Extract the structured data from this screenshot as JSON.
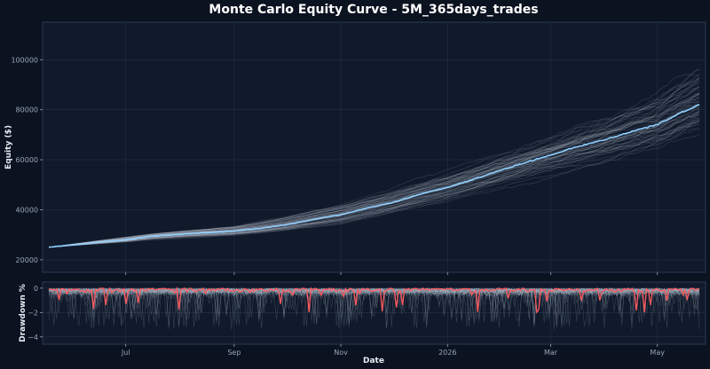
{
  "chart_data": [
    {
      "type": "line",
      "title": "Monte Carlo Equity Curve - 5M_365days_trades",
      "ylabel": "Equity ($)",
      "ylim": [
        15000,
        115000
      ],
      "yticks": [
        20000,
        40000,
        60000,
        80000,
        100000
      ],
      "ytick_labels": [
        "20000",
        "40000",
        "60000",
        "80000",
        "100000"
      ],
      "grid": true,
      "x_start": "2025-05-18",
      "x_end": "2026-05-25",
      "series": [
        {
          "role": "median",
          "x": [
            "2025-05-18",
            "2025-06-01",
            "2025-06-15",
            "2025-07-01",
            "2025-07-15",
            "2025-08-01",
            "2025-08-15",
            "2025-09-01",
            "2025-09-15",
            "2025-10-01",
            "2025-10-15",
            "2025-11-01",
            "2025-11-15",
            "2025-12-01",
            "2025-12-15",
            "2026-01-01",
            "2026-01-15",
            "2026-02-01",
            "2026-02-15",
            "2026-03-01",
            "2026-03-15",
            "2026-04-01",
            "2026-04-15",
            "2026-05-01",
            "2026-05-15",
            "2026-05-25"
          ],
          "y": [
            25000,
            26000,
            27000,
            28000,
            29300,
            30200,
            30800,
            31500,
            32500,
            34000,
            36000,
            38000,
            40500,
            43000,
            46000,
            49000,
            52000,
            56000,
            59000,
            62000,
            65000,
            68000,
            71000,
            74000,
            79000,
            82000
          ]
        },
        {
          "role": "upper-envelope",
          "x": [
            "2025-05-18",
            "2025-07-01",
            "2025-09-01",
            "2025-11-01",
            "2026-01-01",
            "2026-03-01",
            "2026-05-01",
            "2026-05-25"
          ],
          "y": [
            25000,
            30000,
            35000,
            45000,
            58000,
            72000,
            93000,
            106000
          ]
        },
        {
          "role": "lower-envelope",
          "x": [
            "2025-05-18",
            "2025-07-01",
            "2025-09-01",
            "2025-11-01",
            "2026-01-01",
            "2026-03-01",
            "2026-05-01",
            "2026-05-25"
          ],
          "y": [
            25000,
            26500,
            28500,
            32000,
            40000,
            49000,
            58000,
            63000
          ]
        }
      ]
    },
    {
      "type": "line",
      "ylabel": "Drawdown %",
      "xlabel": "Date",
      "ylim": [
        -4.6,
        0.5
      ],
      "yticks": [
        0,
        -2,
        -4
      ],
      "ytick_labels": [
        "0",
        "−2",
        "−4"
      ],
      "x_ticks": [
        "2025-07-01",
        "2025-09-01",
        "2025-11-01",
        "2026-01-01",
        "2026-03-01",
        "2026-05-01"
      ],
      "x_tick_labels": [
        "Jul",
        "Sep",
        "Nov",
        "2026",
        "Mar",
        "May"
      ],
      "grid": true,
      "typical_min": -1.2,
      "worst_min": -4.0
    }
  ],
  "colors": {
    "figure_bg": "#0b1220",
    "axes_bg": "#101a2b",
    "grid": "#223049",
    "spine": "#2b3a52",
    "median": "#8fcfff",
    "paths": "#c7ced9",
    "drawdown_median": "#ff5a5f",
    "drawdown_paths": "#b8c2d0"
  }
}
